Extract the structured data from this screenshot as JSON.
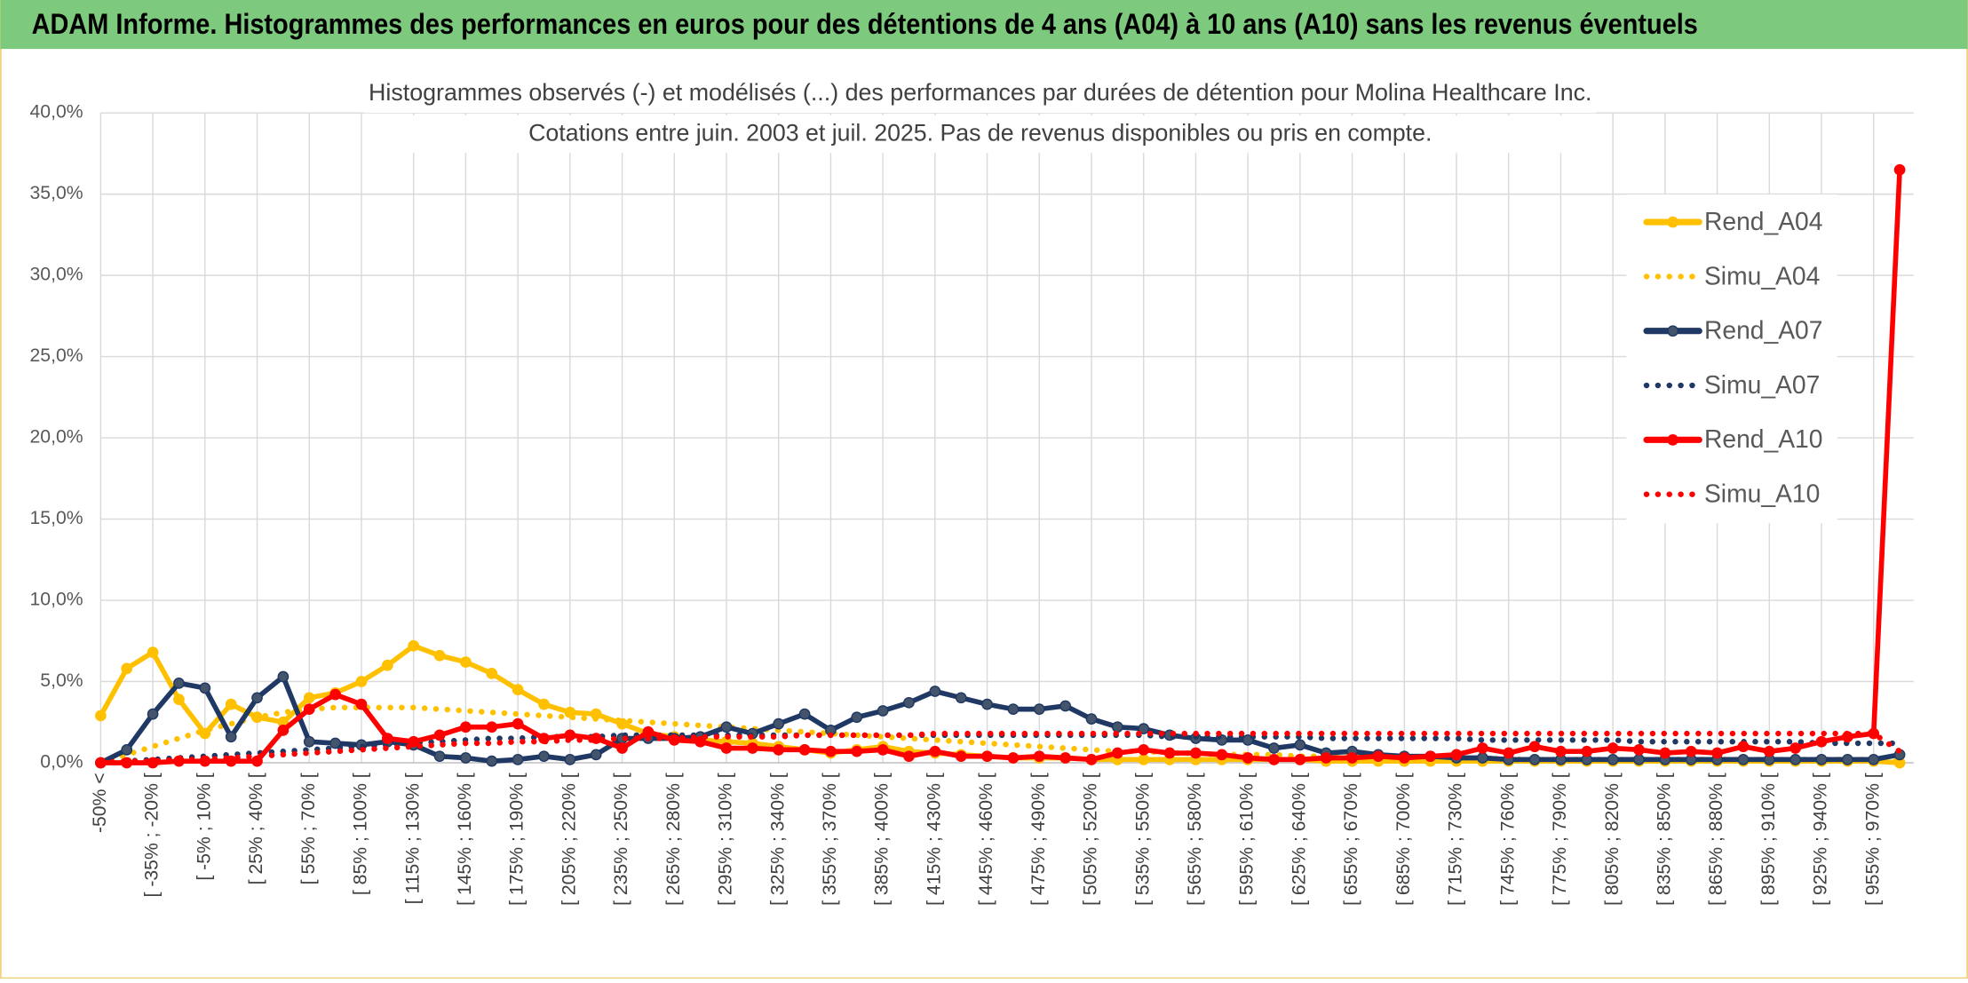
{
  "chart_data": {
    "type": "line",
    "title": "ADAM Informe. Histogrammes des performances en euros pour des détentions de 4 ans (A04) à 10 ans (A10) sans les revenus éventuels",
    "subtitle": [
      "Histogrammes observés (-) et modélisés (...) des performances par durées de détention pour Molina Healthcare Inc.",
      "Cotations entre juin. 2003 et juil. 2025. Pas de revenus disponibles ou pris en compte."
    ],
    "categories": [
      "-50% <",
      null,
      "[ -35% ; -20% [",
      null,
      "[ -5% ; 10% [",
      null,
      "[ 25% ; 40% [",
      null,
      "[ 55% ; 70% [",
      null,
      "[ 85% ; 100% [",
      null,
      "[ 115% ; 130% [",
      null,
      "[ 145% ; 160% [",
      null,
      "[ 175% ; 190% [",
      null,
      "[ 205% ; 220% [",
      null,
      "[ 235% ; 250% [",
      null,
      "[ 265% ; 280% [",
      null,
      "[ 295% ; 310% [",
      null,
      "[ 325% ; 340% [",
      null,
      "[ 355% ; 370% [",
      null,
      "[ 385% ; 400% [",
      null,
      "[ 415% ; 430% [",
      null,
      "[ 445% ; 460% [",
      null,
      "[ 475% ; 490% [",
      null,
      "[ 505% ; 520% [",
      null,
      "[ 535% ; 550% [",
      null,
      "[ 565% ; 580% [",
      null,
      "[ 595% ; 610% [",
      null,
      "[ 625% ; 640% [",
      null,
      "[ 655% ; 670% [",
      null,
      "[ 685% ; 700% [",
      null,
      "[ 715% ; 730% [",
      null,
      "[ 745% ; 760% [",
      null,
      "[ 775% ; 790% [",
      null,
      "[ 805% ; 820% [",
      null,
      "[ 835% ; 850% [",
      null,
      "[ 865% ; 880% [",
      null,
      "[ 895% ; 910% [",
      null,
      "[ 925% ; 940% [",
      null,
      "[ 955% ; 970% [",
      null
    ],
    "series": [
      {
        "name": "Rend_A04",
        "color": "#FFC000",
        "line_style": "solid",
        "marker": true,
        "values": [
          2.9,
          5.8,
          6.8,
          3.9,
          1.8,
          3.6,
          2.8,
          2.5,
          4.0,
          4.3,
          5.0,
          6.0,
          7.2,
          6.6,
          6.2,
          5.5,
          4.5,
          3.6,
          3.1,
          3.0,
          2.4,
          1.8,
          1.6,
          1.4,
          1.3,
          1.2,
          1.0,
          0.8,
          0.6,
          0.8,
          1.0,
          0.7,
          0.6,
          0.5,
          0.4,
          0.3,
          0.3,
          0.3,
          0.2,
          0.2,
          0.2,
          0.2,
          0.2,
          0.2,
          0.2,
          0.2,
          0.2,
          0.1,
          0.1,
          0.1,
          0.1,
          0.1,
          0.1,
          0.1,
          0.1,
          0.1,
          0.1,
          0.1,
          0.1,
          0.1,
          0.1,
          0.1,
          0.1,
          0.1,
          0.1,
          0.1,
          0.1,
          0.1,
          0.1,
          0.0
        ]
      },
      {
        "name": "Simu_A04",
        "color": "#FFC000",
        "line_style": "dotted",
        "marker": false,
        "values": [
          0.0,
          0.5,
          1.0,
          1.5,
          2.0,
          2.4,
          2.8,
          3.1,
          3.3,
          3.4,
          3.4,
          3.4,
          3.4,
          3.3,
          3.2,
          3.1,
          3.0,
          2.9,
          2.8,
          2.7,
          2.6,
          2.5,
          2.4,
          2.3,
          2.2,
          2.1,
          2.0,
          1.9,
          1.8,
          1.7,
          1.6,
          1.5,
          1.4,
          1.3,
          1.2,
          1.1,
          1.0,
          0.9,
          0.8,
          0.7,
          0.7,
          0.6,
          0.6,
          0.5,
          0.5,
          0.5,
          0.4,
          0.4,
          0.4,
          0.3,
          0.3,
          0.3,
          0.3,
          0.3,
          0.2,
          0.2,
          0.2,
          0.2,
          0.2,
          0.2,
          0.2,
          0.2,
          0.2,
          0.2,
          0.2,
          0.2,
          0.2,
          0.2,
          0.2,
          0.1
        ]
      },
      {
        "name": "Rend_A07",
        "color": "#1F3864",
        "line_style": "solid",
        "marker": true,
        "values": [
          0.0,
          0.8,
          3.0,
          4.9,
          4.6,
          1.6,
          4.0,
          5.3,
          1.3,
          1.2,
          1.1,
          1.3,
          1.1,
          0.4,
          0.3,
          0.1,
          0.2,
          0.4,
          0.2,
          0.5,
          1.5,
          1.5,
          1.5,
          1.6,
          2.2,
          1.8,
          2.4,
          3.0,
          2.0,
          2.8,
          3.2,
          3.7,
          4.4,
          4.0,
          3.6,
          3.3,
          3.3,
          3.5,
          2.7,
          2.2,
          2.1,
          1.7,
          1.5,
          1.4,
          1.4,
          0.9,
          1.1,
          0.6,
          0.7,
          0.5,
          0.4,
          0.4,
          0.3,
          0.3,
          0.2,
          0.2,
          0.2,
          0.2,
          0.2,
          0.2,
          0.2,
          0.2,
          0.2,
          0.2,
          0.2,
          0.2,
          0.2,
          0.2,
          0.2,
          0.5
        ]
      },
      {
        "name": "Simu_A07",
        "color": "#1F3864",
        "line_style": "dotted",
        "marker": false,
        "values": [
          0.0,
          0.1,
          0.2,
          0.3,
          0.4,
          0.5,
          0.6,
          0.7,
          0.8,
          0.9,
          1.0,
          1.1,
          1.2,
          1.3,
          1.4,
          1.5,
          1.5,
          1.6,
          1.6,
          1.6,
          1.7,
          1.7,
          1.7,
          1.7,
          1.7,
          1.7,
          1.7,
          1.7,
          1.7,
          1.7,
          1.7,
          1.7,
          1.7,
          1.7,
          1.7,
          1.7,
          1.7,
          1.7,
          1.7,
          1.7,
          1.7,
          1.6,
          1.6,
          1.6,
          1.6,
          1.6,
          1.6,
          1.5,
          1.5,
          1.5,
          1.5,
          1.5,
          1.5,
          1.4,
          1.4,
          1.4,
          1.4,
          1.4,
          1.4,
          1.3,
          1.3,
          1.3,
          1.3,
          1.3,
          1.3,
          1.3,
          1.2,
          1.2,
          1.2,
          1.2
        ]
      },
      {
        "name": "Rend_A10",
        "color": "#FF0000",
        "line_style": "solid",
        "marker": true,
        "values": [
          0.0,
          0.0,
          0.0,
          0.1,
          0.1,
          0.1,
          0.1,
          2.0,
          3.3,
          4.2,
          3.6,
          1.5,
          1.3,
          1.7,
          2.2,
          2.2,
          2.4,
          1.5,
          1.7,
          1.5,
          0.9,
          1.9,
          1.4,
          1.3,
          0.9,
          0.9,
          0.8,
          0.8,
          0.7,
          0.7,
          0.8,
          0.4,
          0.7,
          0.4,
          0.4,
          0.3,
          0.4,
          0.3,
          0.2,
          0.6,
          0.8,
          0.6,
          0.6,
          0.5,
          0.3,
          0.2,
          0.2,
          0.3,
          0.3,
          0.4,
          0.3,
          0.4,
          0.5,
          0.9,
          0.6,
          1.0,
          0.7,
          0.7,
          0.9,
          0.8,
          0.6,
          0.7,
          0.6,
          1.0,
          0.7,
          0.9,
          1.3,
          1.6,
          1.8,
          36.5
        ]
      },
      {
        "name": "Simu_A10",
        "color": "#FF0000",
        "line_style": "dotted",
        "marker": false,
        "values": [
          0.0,
          0.1,
          0.1,
          0.2,
          0.2,
          0.3,
          0.4,
          0.5,
          0.6,
          0.7,
          0.8,
          0.9,
          1.0,
          1.1,
          1.2,
          1.2,
          1.3,
          1.3,
          1.4,
          1.4,
          1.5,
          1.5,
          1.5,
          1.6,
          1.6,
          1.6,
          1.6,
          1.7,
          1.7,
          1.7,
          1.7,
          1.7,
          1.8,
          1.8,
          1.8,
          1.8,
          1.8,
          1.8,
          1.8,
          1.8,
          1.8,
          1.8,
          1.8,
          1.8,
          1.8,
          1.8,
          1.8,
          1.8,
          1.8,
          1.8,
          1.8,
          1.8,
          1.8,
          1.8,
          1.8,
          1.8,
          1.8,
          1.8,
          1.8,
          1.8,
          1.8,
          1.8,
          1.8,
          1.8,
          1.8,
          1.8,
          1.8,
          1.8,
          1.8,
          0.7
        ]
      }
    ],
    "ylim": [
      0,
      40
    ],
    "yticks": [
      {
        "value": 0,
        "label": "0,0%"
      },
      {
        "value": 5,
        "label": "5,0%"
      },
      {
        "value": 10,
        "label": "10,0%"
      },
      {
        "value": 15,
        "label": "15,0%"
      },
      {
        "value": 20,
        "label": "20,0%"
      },
      {
        "value": 25,
        "label": "25,0%"
      },
      {
        "value": 30,
        "label": "30,0%"
      },
      {
        "value": 35,
        "label": "35,0%"
      },
      {
        "value": 40,
        "label": "40,0%"
      }
    ],
    "grid": true,
    "legend": "right"
  }
}
